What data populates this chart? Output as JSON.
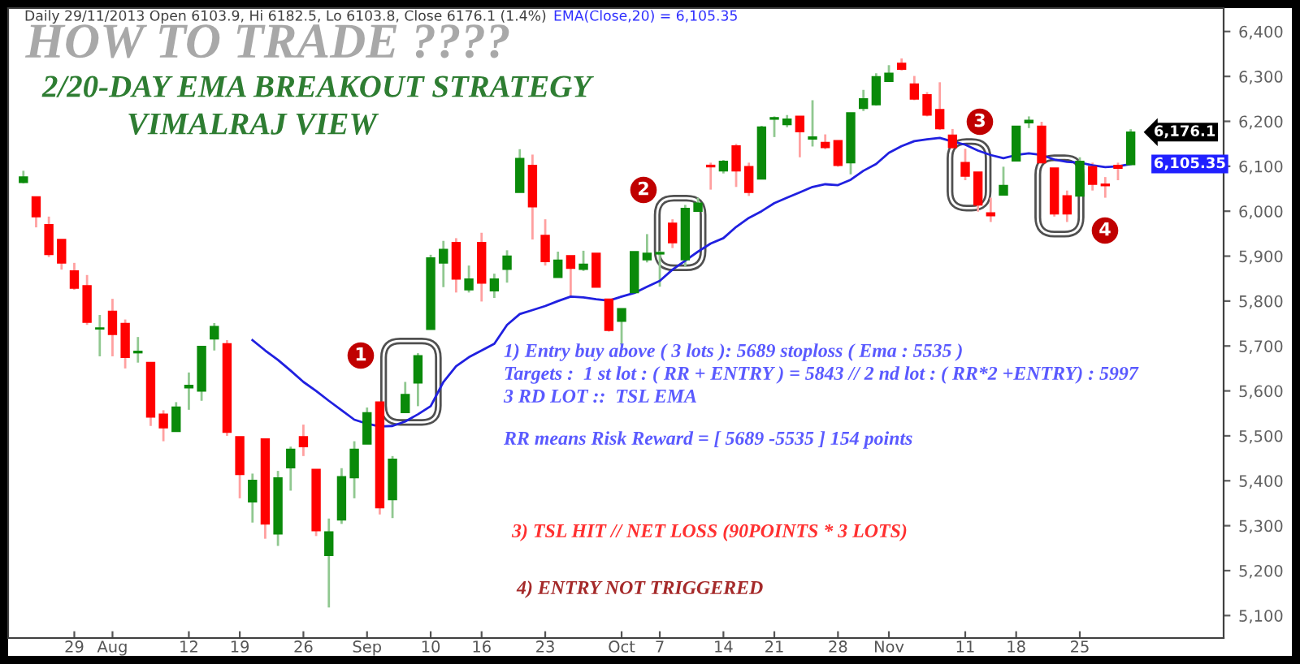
{
  "chart_data": {
    "type": "candlestick",
    "title": "HOW TO TRADE ????",
    "subtitle": "2/20-DAY EMA BREAKOUT STRATEGY\nVIMALRAJ VIEW",
    "categories": [
      null,
      null,
      null,
      null,
      "29",
      null,
      null,
      "Aug",
      null,
      null,
      null,
      null,
      null,
      "12",
      null,
      null,
      null,
      "19",
      null,
      null,
      null,
      null,
      "26",
      null,
      null,
      null,
      null,
      "Sep",
      null,
      null,
      null,
      null,
      "10",
      null,
      null,
      null,
      "16",
      null,
      null,
      null,
      null,
      "23",
      null,
      null,
      null,
      null,
      null,
      "Oct",
      null,
      null,
      "7",
      null,
      null,
      null,
      null,
      "14",
      null,
      null,
      null,
      "21",
      null,
      null,
      null,
      null,
      "28",
      null,
      null,
      null,
      "Nov",
      null,
      null,
      null,
      null,
      null,
      "11",
      null,
      null,
      null,
      "18",
      null,
      null,
      null,
      null,
      "25",
      null,
      null,
      null,
      null
    ],
    "ohlc": [
      [
        6064,
        6090,
        6062,
        6076
      ],
      [
        6032,
        6032,
        5964,
        5988
      ],
      [
        5970,
        5988,
        5898,
        5904
      ],
      [
        5937,
        5937,
        5870,
        5885
      ],
      [
        5867,
        5885,
        5825,
        5829
      ],
      [
        5834,
        5858,
        5747,
        5753
      ],
      [
        5738,
        5769,
        5677,
        5740
      ],
      [
        5777,
        5805,
        5677,
        5726
      ],
      [
        5750,
        5759,
        5650,
        5675
      ],
      [
        5685,
        5720,
        5663,
        5688
      ],
      [
        5663,
        5663,
        5522,
        5542
      ],
      [
        5548,
        5557,
        5488,
        5518
      ],
      [
        5510,
        5575,
        5510,
        5564
      ],
      [
        5607,
        5641,
        5558,
        5612
      ],
      [
        5600,
        5699,
        5578,
        5699
      ],
      [
        5716,
        5751,
        5690,
        5743
      ],
      [
        5705,
        5713,
        5500,
        5508
      ],
      [
        5498,
        5498,
        5361,
        5414
      ],
      [
        5353,
        5416,
        5307,
        5401
      ],
      [
        5493,
        5493,
        5271,
        5304
      ],
      [
        5282,
        5422,
        5255,
        5406
      ],
      [
        5429,
        5476,
        5378,
        5470
      ],
      [
        5498,
        5525,
        5455,
        5476
      ],
      [
        5425,
        5425,
        5277,
        5289
      ],
      [
        5234,
        5316,
        5118,
        5286
      ],
      [
        5313,
        5428,
        5304,
        5409
      ],
      [
        5407,
        5488,
        5361,
        5470
      ],
      [
        5482,
        5563,
        5482,
        5551
      ],
      [
        5575,
        5575,
        5325,
        5340
      ],
      [
        5358,
        5455,
        5317,
        5448
      ],
      [
        5552,
        5620,
        5552,
        5592
      ],
      [
        5618,
        5684,
        5566,
        5678
      ],
      [
        5737,
        5903,
        5737,
        5896
      ],
      [
        5885,
        5934,
        5831,
        5915
      ],
      [
        5930,
        5940,
        5819,
        5849
      ],
      [
        5825,
        5879,
        5819,
        5849
      ],
      [
        5930,
        5952,
        5799,
        5840
      ],
      [
        5823,
        5861,
        5807,
        5849
      ],
      [
        5871,
        5913,
        5841,
        5900
      ],
      [
        6042,
        6138,
        6042,
        6117
      ],
      [
        6102,
        6126,
        5937,
        6010
      ],
      [
        5946,
        5982,
        5879,
        5888
      ],
      [
        5853,
        5910,
        5853,
        5891
      ],
      [
        5901,
        5901,
        5811,
        5873
      ],
      [
        5871,
        5912,
        5867,
        5882
      ],
      [
        5906,
        5906,
        5831,
        5831
      ],
      [
        5804,
        5804,
        5732,
        5735
      ],
      [
        5755,
        5783,
        5701,
        5783
      ],
      [
        5819,
        5910,
        5819,
        5910
      ],
      [
        5892,
        5949,
        5886,
        5906
      ],
      [
        5905,
        5912,
        5832,
        5908
      ],
      [
        5973,
        5982,
        5918,
        5930
      ],
      [
        5892,
        6014,
        5877,
        6006
      ],
      [
        6000,
        6030,
        6000,
        6018
      ],
      [
        6102,
        6108,
        6048,
        6099
      ],
      [
        6090,
        6114,
        6084,
        6111
      ],
      [
        6145,
        6150,
        6054,
        6090
      ],
      [
        6099,
        6108,
        6034,
        6042
      ],
      [
        6072,
        6190,
        6072,
        6187
      ],
      [
        6205,
        6211,
        6165,
        6208
      ],
      [
        6193,
        6214,
        6187,
        6205
      ],
      [
        6211,
        6211,
        6120,
        6177
      ],
      [
        6161,
        6247,
        6144,
        6165
      ],
      [
        6153,
        6171,
        6138,
        6142
      ],
      [
        6157,
        6157,
        6099,
        6102
      ],
      [
        6108,
        6219,
        6082,
        6219
      ],
      [
        6229,
        6270,
        6223,
        6250
      ],
      [
        6237,
        6307,
        6235,
        6299
      ],
      [
        6289,
        6325,
        6289,
        6307
      ],
      [
        6329,
        6340,
        6313,
        6316
      ],
      [
        6283,
        6301,
        6247,
        6250
      ],
      [
        6259,
        6265,
        6211,
        6214
      ],
      [
        6226,
        6287,
        6181,
        6184
      ],
      [
        6169,
        6183,
        6139,
        6142
      ],
      [
        6108,
        6139,
        6069,
        6078
      ],
      [
        6087,
        6087,
        5999,
        6014
      ],
      [
        5996,
        6030,
        5976,
        5990
      ],
      [
        6036,
        6099,
        6036,
        6057
      ],
      [
        6112,
        6189,
        6112,
        6189
      ],
      [
        6197,
        6211,
        6185,
        6202
      ],
      [
        6189,
        6199,
        6108,
        6108
      ],
      [
        6096,
        6096,
        5988,
        5994
      ],
      [
        6034,
        6046,
        5976,
        5994
      ],
      [
        6034,
        6120,
        6034,
        6111
      ],
      [
        6099,
        6108,
        6046,
        6060
      ],
      [
        6060,
        6076,
        6030,
        6057
      ],
      [
        6102,
        6108,
        6069,
        6096
      ],
      [
        6103.9,
        6182.5,
        6103.8,
        6176.1
      ]
    ],
    "series": [
      {
        "type": "line",
        "color": "#2020e0",
        "values": [
          null,
          null,
          null,
          null,
          null,
          null,
          null,
          null,
          null,
          null,
          null,
          null,
          null,
          null,
          null,
          null,
          null,
          null,
          5713,
          5690,
          5669,
          5645,
          5620,
          5600,
          5578,
          5557,
          5536,
          5527,
          5521,
          5522,
          5532,
          5548,
          5566,
          5620,
          5655,
          5675,
          5690,
          5705,
          5747,
          5771,
          5780,
          5789,
          5800,
          5810,
          5808,
          5804,
          5801,
          5810,
          5818,
          5832,
          5845,
          5870,
          5890,
          5910,
          5928,
          5940,
          5965,
          5985,
          6000,
          6018,
          6030,
          6042,
          6054,
          6060,
          6058,
          6070,
          6090,
          6105,
          6130,
          6145,
          6156,
          6160,
          6163,
          6155,
          6148,
          6135,
          6125,
          6118,
          6125,
          6129,
          6125,
          6115,
          6110,
          6108,
          6102,
          6098,
          6100,
          6105
        ]
      }
    ],
    "ylim": [
      5050,
      6452
    ],
    "yticks": [
      {
        "value": 5100,
        "label": "5,100"
      },
      {
        "value": 5200,
        "label": "5,200"
      },
      {
        "value": 5300,
        "label": "5,300"
      },
      {
        "value": 5400,
        "label": "5,400"
      },
      {
        "value": 5500,
        "label": "5,500"
      },
      {
        "value": 5600,
        "label": "5,600"
      },
      {
        "value": 5700,
        "label": "5,700"
      },
      {
        "value": 5800,
        "label": "5,800"
      },
      {
        "value": 5900,
        "label": "5,900"
      },
      {
        "value": 6000,
        "label": "6,000"
      },
      {
        "value": 6100,
        "label": "6,100"
      },
      {
        "value": 6200,
        "label": "6,200"
      },
      {
        "value": 6300,
        "label": "6,300"
      },
      {
        "value": 6400,
        "label": "6,400"
      }
    ],
    "annotations": [
      "Daily 29/11/2013 Open 6103.9, Hi 6182.5, Lo 6103.8, Close 6176.1 (1.4%)",
      "EMA(Close,20) = 6,105.35",
      "1) Entry buy above ( 3 lots ): 5689 stoploss ( Ema : 5535 )",
      "Targets :  1 st lot : ( RR + ENTRY ) = 5843 // 2 nd lot : ( RR*2 +ENTRY) : 5997",
      "3 RD LOT ::  TSL EMA",
      "RR means Risk Reward = [ 5689 -5535 ] 154 points",
      "3) TSL HIT // NET LOSS (90POINTS * 3 LOTS)",
      "4) ENTRY NOT TRIGGERED",
      "1",
      "2",
      "3",
      "4",
      "6,176.1",
      "6,105.35"
    ]
  }
}
